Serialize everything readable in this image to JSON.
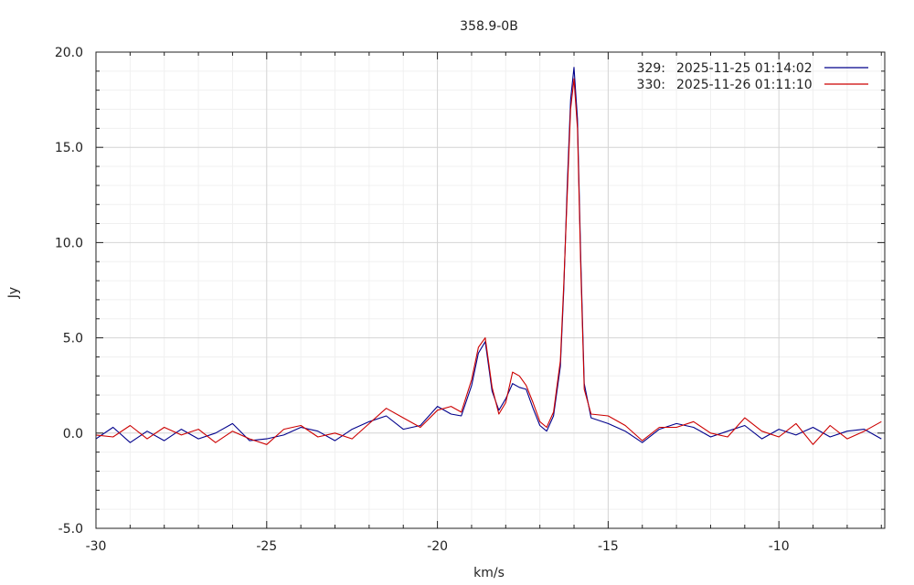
{
  "chart_data": {
    "type": "line",
    "title": "358.9-0B",
    "xlabel": "km/s",
    "ylabel": "Jy",
    "xlim": [
      -30,
      -6.9
    ],
    "ylim": [
      -5,
      20
    ],
    "x_ticks": [
      -30,
      -25,
      -20,
      -15,
      -10
    ],
    "x_tick_labels": [
      "-30",
      "-25",
      "-20",
      "-15",
      "-10"
    ],
    "y_ticks": [
      -5,
      0,
      5,
      10,
      15,
      20
    ],
    "y_tick_labels": [
      "-5.0",
      "0.0",
      "5.0",
      "10.0",
      "15.0",
      "20.0"
    ],
    "grid": true,
    "legend_position": "top-right",
    "series": [
      {
        "name": "2025-11-25 01:14:02",
        "id_label": "329:",
        "color": "#00008b",
        "x": [
          -30.0,
          -29.5,
          -29.0,
          -28.5,
          -28.0,
          -27.5,
          -27.0,
          -26.5,
          -26.0,
          -25.5,
          -25.0,
          -24.5,
          -24.0,
          -23.5,
          -23.0,
          -22.5,
          -22.0,
          -21.5,
          -21.0,
          -20.5,
          -20.0,
          -19.6,
          -19.3,
          -19.0,
          -18.8,
          -18.6,
          -18.4,
          -18.2,
          -18.0,
          -17.8,
          -17.6,
          -17.4,
          -17.2,
          -17.0,
          -16.8,
          -16.6,
          -16.4,
          -16.3,
          -16.2,
          -16.1,
          -16.0,
          -15.9,
          -15.8,
          -15.7,
          -15.5,
          -15.0,
          -14.5,
          -14.0,
          -13.5,
          -13.0,
          -12.5,
          -12.0,
          -11.5,
          -11.0,
          -10.5,
          -10.0,
          -9.5,
          -9.0,
          -8.5,
          -8.0,
          -7.5,
          -7.0
        ],
        "values": [
          -0.3,
          0.3,
          -0.5,
          0.1,
          -0.4,
          0.2,
          -0.3,
          0.0,
          0.5,
          -0.4,
          -0.3,
          -0.1,
          0.3,
          0.1,
          -0.4,
          0.2,
          0.6,
          0.9,
          0.2,
          0.4,
          1.4,
          1.0,
          0.9,
          2.5,
          4.2,
          4.8,
          2.2,
          1.2,
          1.8,
          2.6,
          2.4,
          2.3,
          1.3,
          0.4,
          0.1,
          0.9,
          3.5,
          7.5,
          13.0,
          17.5,
          19.2,
          16.5,
          9.0,
          2.6,
          0.8,
          0.5,
          0.1,
          -0.5,
          0.2,
          0.5,
          0.3,
          -0.2,
          0.1,
          0.4,
          -0.3,
          0.2,
          -0.1,
          0.3,
          -0.2,
          0.1,
          0.2,
          -0.3
        ]
      },
      {
        "name": "2025-11-26 01:11:10",
        "id_label": "330:",
        "color": "#cc0000",
        "x": [
          -30.0,
          -29.5,
          -29.0,
          -28.5,
          -28.0,
          -27.5,
          -27.0,
          -26.5,
          -26.0,
          -25.5,
          -25.0,
          -24.5,
          -24.0,
          -23.5,
          -23.0,
          -22.5,
          -22.0,
          -21.5,
          -21.0,
          -20.5,
          -20.0,
          -19.6,
          -19.3,
          -19.0,
          -18.8,
          -18.6,
          -18.4,
          -18.2,
          -18.0,
          -17.8,
          -17.6,
          -17.4,
          -17.2,
          -17.0,
          -16.8,
          -16.6,
          -16.4,
          -16.3,
          -16.2,
          -16.1,
          -16.0,
          -15.9,
          -15.8,
          -15.7,
          -15.5,
          -15.0,
          -14.5,
          -14.0,
          -13.5,
          -13.0,
          -12.5,
          -12.0,
          -11.5,
          -11.0,
          -10.5,
          -10.0,
          -9.5,
          -9.0,
          -8.5,
          -8.0,
          -7.5,
          -7.0
        ],
        "values": [
          -0.1,
          -0.2,
          0.4,
          -0.3,
          0.3,
          -0.1,
          0.2,
          -0.5,
          0.1,
          -0.3,
          -0.6,
          0.2,
          0.4,
          -0.2,
          0.0,
          -0.3,
          0.5,
          1.3,
          0.8,
          0.3,
          1.2,
          1.4,
          1.1,
          2.8,
          4.5,
          5.0,
          2.4,
          1.0,
          1.6,
          3.2,
          3.0,
          2.5,
          1.6,
          0.6,
          0.3,
          1.1,
          3.8,
          7.8,
          12.5,
          17.0,
          18.6,
          16.0,
          8.5,
          2.3,
          1.0,
          0.9,
          0.4,
          -0.4,
          0.3,
          0.3,
          0.6,
          0.0,
          -0.2,
          0.8,
          0.1,
          -0.2,
          0.5,
          -0.6,
          0.4,
          -0.3,
          0.1,
          0.6
        ]
      }
    ]
  }
}
